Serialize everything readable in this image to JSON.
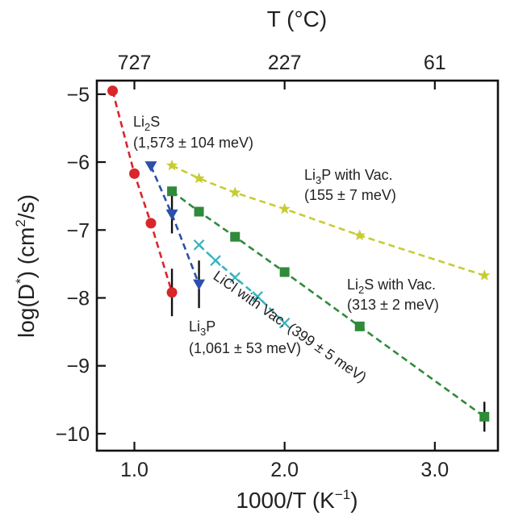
{
  "chart_data": {
    "type": "scatter",
    "xlabel": {
      "base": "1000/T (K",
      "sup": "−1",
      "tail": ")"
    },
    "ylabel": {
      "base": "log(D",
      "sup": "*",
      "mid": ") (cm",
      "sup2": "2",
      "tail": "/s)"
    },
    "top_axis_label": "T (°C)",
    "xlim": [
      0.75,
      3.42
    ],
    "ylim": [
      -10.25,
      -4.8
    ],
    "x_ticks": [
      {
        "value": 1.0,
        "label": "1.0"
      },
      {
        "value": 2.0,
        "label": "2.0"
      },
      {
        "value": 3.0,
        "label": "3.0"
      }
    ],
    "y_ticks": [
      {
        "value": -5,
        "label": "−5"
      },
      {
        "value": -6,
        "label": "−6"
      },
      {
        "value": -7,
        "label": "−7"
      },
      {
        "value": -8,
        "label": "−8"
      },
      {
        "value": -9,
        "label": "−9"
      },
      {
        "value": -10,
        "label": "−10"
      }
    ],
    "top_ticks": [
      {
        "value": 1.0,
        "label": "727"
      },
      {
        "value": 2.0,
        "label": "227"
      },
      {
        "value": 3.0,
        "label": "61"
      }
    ],
    "grid": false,
    "series": [
      {
        "name": "Li2S",
        "color": "#d8262b",
        "marker": "circle",
        "x": [
          0.855,
          1.0,
          1.11,
          1.25
        ],
        "y": [
          -4.95,
          -6.17,
          -6.9,
          -7.92
        ],
        "err": [
          0,
          0,
          0,
          0.35
        ],
        "annotation": {
          "lines": [
            {
              "text": "Li",
              "sub": "2",
              "after": "S"
            },
            {
              "text": "(1,573 ± 104 meV)"
            }
          ]
        }
      },
      {
        "name": "Li3P",
        "color": "#2b4fab",
        "marker": "triangle-down",
        "x": [
          1.11,
          1.25,
          1.43
        ],
        "y": [
          -6.06,
          -6.77,
          -7.8
        ],
        "err": [
          0,
          0.28,
          0.35
        ],
        "annotation": {
          "lines": [
            {
              "text": "Li",
              "sub": "3",
              "after": "P"
            },
            {
              "text": "(1,061 ± 53 meV)"
            }
          ]
        }
      },
      {
        "name": "LiCl with Vac.",
        "color": "#3ab3bd",
        "marker": "x",
        "x": [
          1.43,
          1.54,
          1.67,
          1.82,
          2.0
        ],
        "y": [
          -7.22,
          -7.45,
          -7.7,
          -7.98,
          -8.37
        ],
        "err": [
          0,
          0,
          0,
          0,
          0
        ],
        "annotation": {
          "lines": [
            {
              "text": "LiCl with Vac. (399 ± 5 meV)"
            }
          ]
        }
      },
      {
        "name": "Li2S with Vac.",
        "color": "#2f8a3a",
        "marker": "square",
        "x": [
          1.25,
          1.43,
          1.67,
          2.0,
          2.5,
          3.33
        ],
        "y": [
          -6.43,
          -6.73,
          -7.1,
          -7.62,
          -8.42,
          -9.75
        ],
        "err": [
          0,
          0,
          0,
          0,
          0,
          0.22
        ],
        "annotation": {
          "lines": [
            {
              "text": "Li",
              "sub": "2",
              "after": "S with Vac."
            },
            {
              "text": "(313 ± 2 meV)"
            }
          ]
        }
      },
      {
        "name": "Li3P with Vac.",
        "color": "#c7cc35",
        "marker": "star",
        "x": [
          1.25,
          1.43,
          1.67,
          2.0,
          2.5,
          3.33
        ],
        "y": [
          -6.05,
          -6.24,
          -6.45,
          -6.69,
          -7.08,
          -7.67
        ],
        "err": [
          0,
          0,
          0,
          0,
          0,
          0
        ],
        "annotation": {
          "lines": [
            {
              "text": "Li",
              "sub": "3",
              "after": "P with Vac."
            },
            {
              "text": "(155 ± 7 meV)"
            }
          ]
        }
      }
    ]
  }
}
